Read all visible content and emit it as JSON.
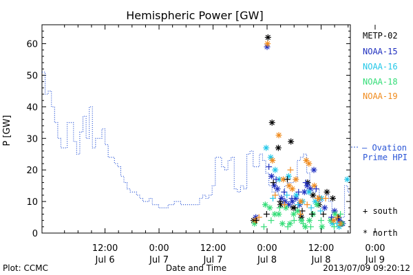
{
  "chart_data": {
    "type": "scatter",
    "title": "Hemispheric Power [GW]",
    "xlabel": "Date and Time",
    "ylabel": "P [GW]",
    "ylim": [
      0,
      66
    ],
    "xlim": [
      -2.0,
      66.5
    ],
    "x_unit": "hours since Jul 6 00:00",
    "yticks": [
      0,
      10,
      20,
      30,
      40,
      50,
      60
    ],
    "xticks": [
      {
        "x": 12,
        "time": "12:00",
        "date": "Jul 6"
      },
      {
        "x": 24,
        "time": "0:00",
        "date": "Jul 7"
      },
      {
        "x": 36,
        "time": "12:00",
        "date": "Jul 7"
      },
      {
        "x": 48,
        "time": "0:00",
        "date": "Jul 8"
      },
      {
        "x": 60,
        "time": "12:00",
        "date": "Jul 8"
      },
      {
        "x": 72,
        "time": "0:00",
        "date": "Jul 9"
      }
    ],
    "grid": false,
    "legend": "right",
    "series": [
      {
        "name": "METP-02",
        "color": "#000000",
        "marker": "star",
        "points": [
          [
            45.0,
            4
          ],
          [
            48.2,
            62
          ],
          [
            49.1,
            35
          ],
          [
            50.5,
            27
          ],
          [
            51.0,
            9
          ],
          [
            53.3,
            29
          ],
          [
            53.8,
            8
          ],
          [
            55.6,
            5
          ],
          [
            57.0,
            16
          ],
          [
            58.2,
            12
          ],
          [
            59.5,
            9
          ],
          [
            61.3,
            13
          ],
          [
            62.6,
            11
          ],
          [
            63.8,
            5
          ],
          [
            64.5,
            3
          ]
        ]
      },
      {
        "name": "NOAA-15",
        "color": "#1f2fbf",
        "marker": "star",
        "points": [
          [
            45.5,
            5
          ],
          [
            48.0,
            59
          ],
          [
            49.0,
            18
          ],
          [
            49.6,
            15
          ],
          [
            50.3,
            14
          ],
          [
            51.2,
            11
          ],
          [
            52.0,
            10
          ],
          [
            52.8,
            9
          ],
          [
            53.6,
            10
          ],
          [
            54.4,
            11
          ],
          [
            55.2,
            9
          ],
          [
            56.3,
            13
          ],
          [
            56.9,
            15
          ],
          [
            57.6,
            14
          ],
          [
            58.4,
            20
          ],
          [
            59.6,
            11
          ],
          [
            60.8,
            8
          ],
          [
            63.0,
            7
          ],
          [
            64.0,
            4
          ],
          [
            64.8,
            3
          ]
        ]
      },
      {
        "name": "NOAA-16",
        "color": "#22c7e8",
        "marker": "star",
        "points": [
          [
            47.8,
            27
          ],
          [
            48.8,
            24
          ],
          [
            49.8,
            20
          ],
          [
            50.7,
            17
          ],
          [
            52.8,
            18
          ],
          [
            54.5,
            12
          ],
          [
            55.9,
            10
          ],
          [
            57.3,
            13
          ],
          [
            58.7,
            10
          ],
          [
            60.1,
            11
          ],
          [
            62.5,
            3
          ],
          [
            64.0,
            2
          ],
          [
            65.8,
            17
          ]
        ]
      },
      {
        "name": "NOAA-18",
        "color": "#33dd77",
        "marker": "star",
        "points": [
          [
            45.2,
            3
          ],
          [
            47.6,
            9
          ],
          [
            48.6,
            8
          ],
          [
            49.7,
            6
          ],
          [
            50.6,
            6
          ],
          [
            51.4,
            3
          ],
          [
            52.2,
            8
          ],
          [
            53.1,
            3
          ],
          [
            53.9,
            6
          ],
          [
            54.8,
            7
          ],
          [
            55.6,
            4
          ],
          [
            56.5,
            2
          ],
          [
            57.4,
            4
          ],
          [
            58.2,
            6
          ],
          [
            59.1,
            9
          ],
          [
            60.2,
            2
          ],
          [
            62.1,
            4
          ],
          [
            63.1,
            6
          ],
          [
            64.6,
            3
          ]
        ]
      },
      {
        "name": "NOAA-19",
        "color": "#f08b1d",
        "marker": "star",
        "points": [
          [
            45.4,
            4
          ],
          [
            48.1,
            60
          ],
          [
            49.2,
            23
          ],
          [
            50.6,
            31
          ],
          [
            51.6,
            17
          ],
          [
            52.9,
            15
          ],
          [
            53.6,
            14
          ],
          [
            54.4,
            17
          ],
          [
            55.5,
            10
          ],
          [
            56.7,
            23
          ],
          [
            57.3,
            22
          ],
          [
            58.5,
            15
          ],
          [
            59.5,
            11
          ],
          [
            62.8,
            4
          ],
          [
            64.2,
            3
          ]
        ]
      },
      {
        "name": "METP-02 south",
        "color": "#000000",
        "marker": "plus",
        "hemisphere": "south",
        "points": [
          [
            45.6,
            4
          ],
          [
            47.9,
            6
          ],
          [
            49.4,
            16
          ],
          [
            50.9,
            10
          ],
          [
            52.5,
            17
          ],
          [
            54.2,
            8
          ],
          [
            55.8,
            7
          ],
          [
            58.0,
            6
          ],
          [
            60.5,
            6
          ]
        ]
      },
      {
        "name": "NOAA-15 south",
        "color": "#1f2fbf",
        "marker": "plus",
        "hemisphere": "south",
        "points": [
          [
            48.4,
            21
          ],
          [
            50.0,
            17
          ],
          [
            51.8,
            13
          ],
          [
            53.5,
            11
          ],
          [
            55.0,
            13
          ],
          [
            56.6,
            16
          ],
          [
            58.9,
            14
          ],
          [
            62.3,
            5
          ]
        ]
      },
      {
        "name": "NOAA-16 south",
        "color": "#22c7e8",
        "marker": "plus",
        "hemisphere": "south",
        "points": [
          [
            49.3,
            11
          ],
          [
            52.4,
            12
          ],
          [
            54.9,
            9
          ],
          [
            57.8,
            8
          ],
          [
            59.9,
            7
          ],
          [
            63.5,
            3
          ]
        ]
      },
      {
        "name": "NOAA-18 south",
        "color": "#33dd77",
        "marker": "plus",
        "hemisphere": "south",
        "points": [
          [
            47.3,
            2
          ],
          [
            48.9,
            4
          ],
          [
            50.8,
            8
          ],
          [
            52.6,
            2
          ],
          [
            54.0,
            4
          ],
          [
            56.0,
            3
          ],
          [
            57.7,
            2
          ],
          [
            60.0,
            4
          ],
          [
            62.9,
            2
          ],
          [
            64.3,
            6
          ]
        ]
      },
      {
        "name": "NOAA-19 south",
        "color": "#f08b1d",
        "marker": "plus",
        "hemisphere": "south",
        "points": [
          [
            46.2,
            5
          ],
          [
            49.8,
            12
          ],
          [
            51.9,
            9
          ],
          [
            53.2,
            20
          ],
          [
            55.4,
            6
          ],
          [
            56.9,
            9
          ],
          [
            59.2,
            11
          ],
          [
            61.0,
            11
          ],
          [
            63.6,
            5
          ]
        ]
      }
    ],
    "ovation": {
      "name": "Ovation Prime HPI",
      "color": "#2a55d6",
      "style": "dotted-step",
      "points": [
        [
          -2,
          51
        ],
        [
          -1.3,
          44
        ],
        [
          -0.6,
          45
        ],
        [
          0.1,
          40
        ],
        [
          0.8,
          35
        ],
        [
          1.5,
          30
        ],
        [
          2.2,
          27
        ],
        [
          2.9,
          27
        ],
        [
          3.6,
          35
        ],
        [
          4.3,
          35
        ],
        [
          5.0,
          29
        ],
        [
          5.7,
          25
        ],
        [
          6.4,
          32
        ],
        [
          7.1,
          37
        ],
        [
          7.8,
          30
        ],
        [
          8.5,
          40
        ],
        [
          9.2,
          27
        ],
        [
          9.9,
          30
        ],
        [
          10.6,
          30
        ],
        [
          11.3,
          33
        ],
        [
          12.0,
          28
        ],
        [
          12.7,
          24
        ],
        [
          13.4,
          24
        ],
        [
          14.1,
          22
        ],
        [
          14.8,
          21
        ],
        [
          15.5,
          18
        ],
        [
          16.2,
          16
        ],
        [
          16.9,
          14
        ],
        [
          17.6,
          13
        ],
        [
          18.3,
          13
        ],
        [
          19.0,
          12
        ],
        [
          19.7,
          11
        ],
        [
          20.4,
          10
        ],
        [
          21.1,
          10
        ],
        [
          21.8,
          11
        ],
        [
          22.5,
          9
        ],
        [
          23.2,
          9
        ],
        [
          23.9,
          8
        ],
        [
          24.6,
          8
        ],
        [
          25.3,
          8
        ],
        [
          26.0,
          9
        ],
        [
          26.7,
          9
        ],
        [
          27.4,
          10
        ],
        [
          28.1,
          10
        ],
        [
          28.8,
          9
        ],
        [
          29.5,
          9
        ],
        [
          30.2,
          9
        ],
        [
          30.9,
          9
        ],
        [
          31.6,
          9
        ],
        [
          32.3,
          9
        ],
        [
          33.0,
          11
        ],
        [
          33.7,
          12
        ],
        [
          34.4,
          11
        ],
        [
          35.1,
          12
        ],
        [
          35.8,
          15
        ],
        [
          36.5,
          24
        ],
        [
          37.2,
          24
        ],
        [
          37.9,
          21
        ],
        [
          38.6,
          20
        ],
        [
          39.3,
          23
        ],
        [
          40.0,
          24
        ],
        [
          40.7,
          14
        ],
        [
          41.4,
          13
        ],
        [
          42.1,
          15
        ],
        [
          42.8,
          14
        ],
        [
          43.5,
          25
        ],
        [
          44.2,
          26
        ],
        [
          44.9,
          21
        ],
        [
          45.6,
          21
        ],
        [
          46.3,
          25
        ],
        [
          47.0,
          23
        ],
        [
          47.7,
          19
        ],
        [
          48.4,
          15
        ],
        [
          49.1,
          13
        ],
        [
          49.8,
          13
        ],
        [
          50.5,
          12
        ],
        [
          51.2,
          10
        ],
        [
          51.9,
          15
        ],
        [
          52.6,
          16
        ],
        [
          53.3,
          16
        ],
        [
          54.0,
          17
        ],
        [
          54.7,
          23
        ],
        [
          55.4,
          24
        ],
        [
          56.1,
          25
        ],
        [
          56.8,
          19
        ],
        [
          57.5,
          14
        ],
        [
          58.2,
          13
        ],
        [
          58.9,
          14
        ],
        [
          59.6,
          10
        ],
        [
          60.3,
          11
        ],
        [
          61.0,
          12
        ],
        [
          61.7,
          10
        ],
        [
          62.4,
          5
        ],
        [
          63.1,
          4
        ],
        [
          63.8,
          3
        ],
        [
          64.5,
          5
        ],
        [
          65.2,
          15
        ],
        [
          65.9,
          13
        ],
        [
          66.5,
          13
        ]
      ]
    }
  },
  "legend": {
    "series_labels": [
      {
        "text": "METP-02",
        "color": "#000000"
      },
      {
        "text": "NOAA-15",
        "color": "#1f2fbf"
      },
      {
        "text": "NOAA-16",
        "color": "#22c7e8"
      },
      {
        "text": "NOAA-18",
        "color": "#33dd77"
      },
      {
        "text": "NOAA-19",
        "color": "#f08b1d"
      }
    ],
    "ovation_line1": "— Ovation",
    "ovation_line2": "Prime HPI",
    "south_label": "+ south",
    "north_label": "* north"
  },
  "footer": {
    "left": "Plot: CCMC",
    "center": "Date and Time",
    "right": "2013/07/09 09:20:12"
  }
}
